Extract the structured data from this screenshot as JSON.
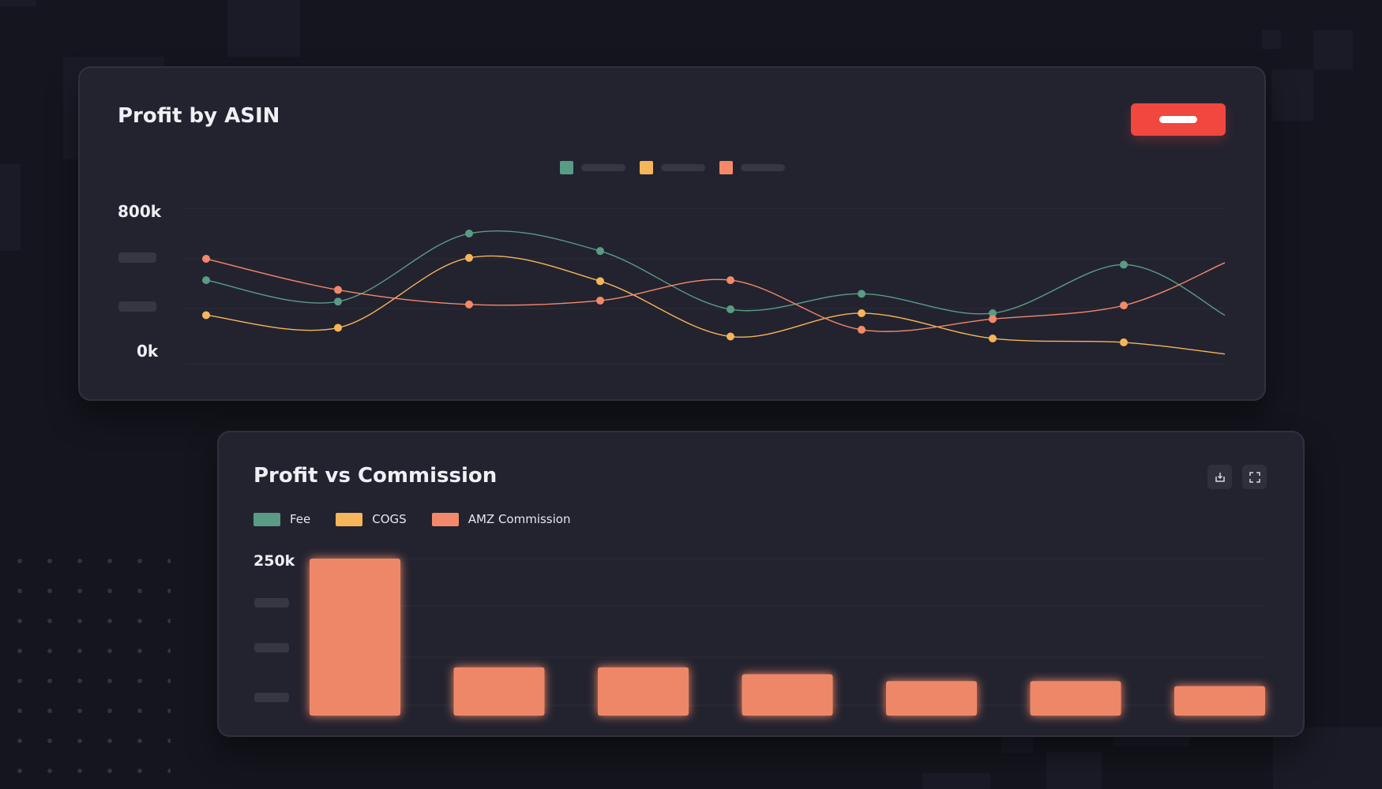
{
  "profit_by_asin": {
    "title": "Profit by ASIN",
    "legend_colors": [
      "#5a9b86",
      "#f5b55a",
      "#f3896a"
    ],
    "y_tick_labels": {
      "top": "800k",
      "bottom": "0k"
    }
  },
  "profit_vs_commission": {
    "title": "Profit vs Commission",
    "legend": [
      {
        "label": "Fee",
        "color": "#5a9b86"
      },
      {
        "label": "COGS",
        "color": "#f5b55a"
      },
      {
        "label": "AMZ Commission",
        "color": "#f3896a"
      }
    ],
    "y_tick_top": "250k",
    "icons": {
      "download": "download-icon",
      "expand": "expand-icon"
    }
  },
  "chart_data": [
    {
      "type": "line",
      "title": "Profit by ASIN",
      "ylim": [
        0,
        800
      ],
      "grid": true,
      "legend_placement": "top-center",
      "series": [
        {
          "color": "#5a9b86",
          "values": [
            430,
            320,
            670,
            580,
            280,
            360,
            260,
            510,
            250
          ]
        },
        {
          "color": "#f5b55a",
          "values": [
            250,
            185,
            545,
            425,
            140,
            260,
            130,
            110,
            50
          ]
        },
        {
          "color": "#f3896a",
          "values": [
            540,
            380,
            305,
            325,
            430,
            175,
            230,
            300,
            520
          ]
        }
      ]
    },
    {
      "type": "bar",
      "title": "Profit vs Commission",
      "ylim": [
        0,
        250
      ],
      "grid": true,
      "legend_placement": "top-left",
      "series": [
        {
          "name": "AMZ Commission",
          "color": "#f3896a",
          "values": [
            250,
            77,
            77,
            66,
            55,
            55,
            47
          ]
        }
      ]
    }
  ]
}
